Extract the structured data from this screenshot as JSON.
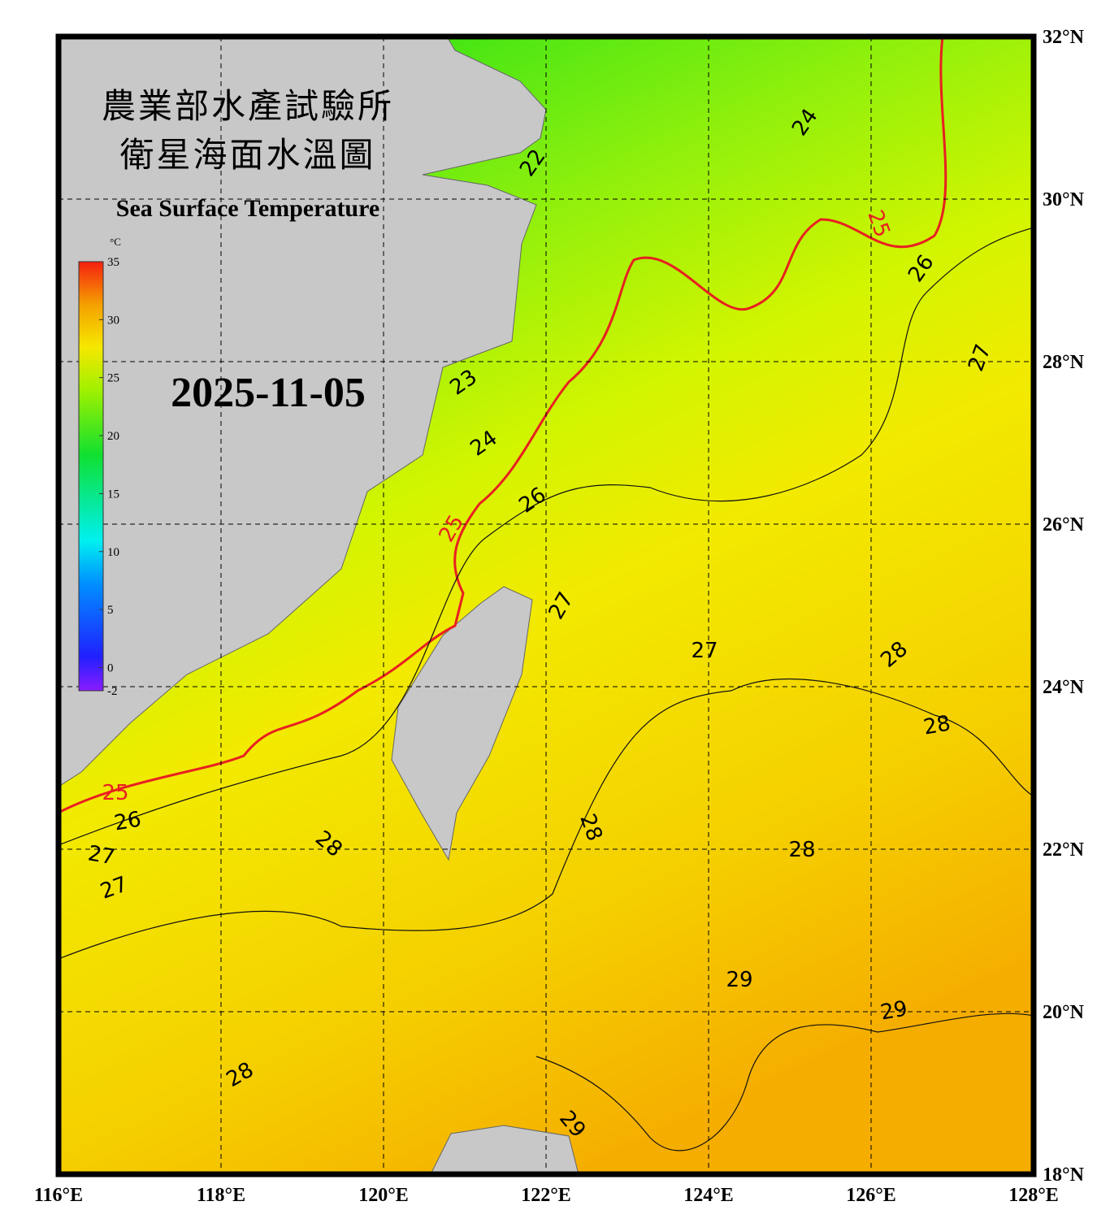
{
  "header": {
    "title_zh_1": "農業部水產試驗所",
    "title_zh_2": "衛星海面水溫圖",
    "title_en": "Sea Surface Temperature",
    "date": "2025-11-05"
  },
  "colorbar": {
    "unit": "°C",
    "ticks": [
      35,
      30,
      25,
      20,
      15,
      10,
      5,
      0,
      -2
    ]
  },
  "lon_ticks": [
    {
      "value": 116,
      "label": "116°E"
    },
    {
      "value": 118,
      "label": "118°E"
    },
    {
      "value": 120,
      "label": "120°E"
    },
    {
      "value": 122,
      "label": "122°E"
    },
    {
      "value": 124,
      "label": "124°E"
    },
    {
      "value": 126,
      "label": "126°E"
    },
    {
      "value": 128,
      "label": "128°E"
    }
  ],
  "lat_ticks": [
    {
      "value": 32,
      "label": "32°N"
    },
    {
      "value": 30,
      "label": "30°N"
    },
    {
      "value": 28,
      "label": "28°N"
    },
    {
      "value": 26,
      "label": "26°N"
    },
    {
      "value": 24,
      "label": "24°N"
    },
    {
      "value": 22,
      "label": "22°N"
    },
    {
      "value": 20,
      "label": "20°N"
    },
    {
      "value": 18,
      "label": "18°N"
    }
  ],
  "contour_labels": [
    25,
    25,
    25,
    22,
    24,
    23,
    24,
    26,
    27,
    26,
    27,
    27,
    28,
    28,
    28,
    27,
    28,
    28,
    29,
    29,
    28,
    29,
    26,
    27
  ]
}
